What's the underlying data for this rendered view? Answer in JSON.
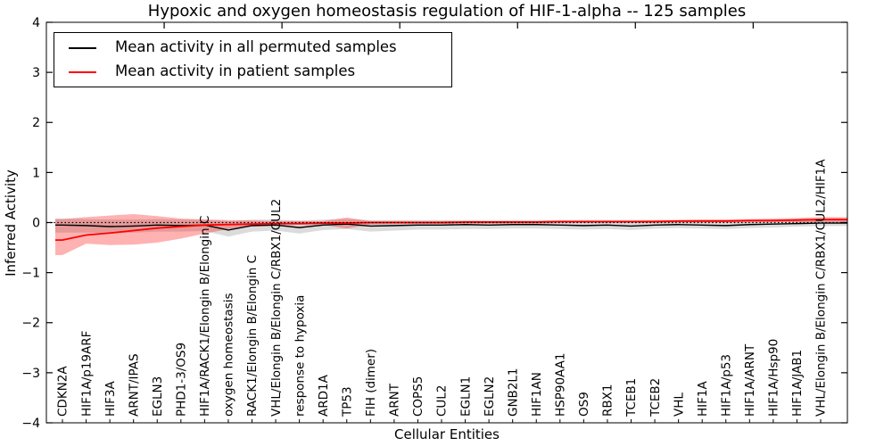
{
  "chart_data": {
    "type": "line",
    "title": "Hypoxic and oxygen homeostasis regulation of HIF-1-alpha -- 125 samples",
    "xlabel": "Cellular Entities",
    "ylabel": "Inferred Activity",
    "ylim": [
      -4,
      4
    ],
    "yticks": [
      -4,
      -3,
      -2,
      -1,
      0,
      1,
      2,
      3,
      4
    ],
    "ytick_labels": [
      "−4",
      "−3",
      "−2",
      "−1",
      "0",
      "1",
      "2",
      "3",
      "4"
    ],
    "top_axis_xticks": [
      5,
      10,
      15,
      20,
      25,
      30
    ],
    "grid": false,
    "legend_position": "upper left",
    "zero_line": {
      "y": 0,
      "style": "dotted",
      "color": "#000000"
    },
    "categories": [
      "CDKN2A",
      "HIF1A/p19ARF",
      "HIF3A",
      "ARNT/IPAS",
      "EGLN3",
      "PHD1-3/OS9",
      "HIF1A/RACK1/Elongin B/Elongin C",
      "oxygen homeostasis",
      "RACK1/Elongin B/Elongin C",
      "VHL/Elongin B/Elongin C/RBX1/CUL2",
      "response to hypoxia",
      "ARD1A",
      "TP53",
      "FIH (dimer)",
      "ARNT",
      "COPS5",
      "CUL2",
      "EGLN1",
      "EGLN2",
      "GNB2L1",
      "HIF1AN",
      "HSP90AA1",
      "OS9",
      "RBX1",
      "TCEB1",
      "TCEB2",
      "VHL",
      "HIF1A",
      "HIF1A/p53",
      "HIF1A/ARNT",
      "HIF1A/Hsp90",
      "HIF1A/JAB1",
      "VHL/Elongin B/Elongin C/RBX1/CUL2/HIF1A"
    ],
    "series": [
      {
        "name": "Mean activity in all permuted samples",
        "color": "#000000",
        "values": [
          -0.05,
          -0.06,
          -0.08,
          -0.07,
          -0.05,
          -0.06,
          -0.05,
          -0.15,
          -0.06,
          -0.05,
          -0.1,
          -0.05,
          -0.03,
          -0.07,
          -0.06,
          -0.05,
          -0.05,
          -0.04,
          -0.05,
          -0.04,
          -0.04,
          -0.05,
          -0.06,
          -0.05,
          -0.07,
          -0.05,
          -0.04,
          -0.05,
          -0.06,
          -0.04,
          -0.03,
          -0.02,
          -0.01
        ]
      },
      {
        "name": "Mean activity in patient samples",
        "color": "#ff0000",
        "values": [
          -0.35,
          -0.25,
          -0.21,
          -0.16,
          -0.11,
          -0.08,
          -0.05,
          -0.04,
          -0.03,
          -0.02,
          -0.02,
          -0.01,
          -0.01,
          0,
          0,
          0,
          0,
          0.01,
          0.01,
          0.01,
          0.01,
          0.02,
          0.02,
          0.02,
          0.02,
          0.02,
          0.03,
          0.03,
          0.03,
          0.04,
          0.04,
          0.05,
          0.06
        ]
      }
    ],
    "bands": [
      {
        "series": "Mean activity in all permuted samples",
        "color": "#000000",
        "opacity": 0.14,
        "low": [
          -0.2,
          -0.2,
          -0.22,
          -0.2,
          -0.18,
          -0.18,
          -0.17,
          -0.28,
          -0.18,
          -0.16,
          -0.22,
          -0.15,
          -0.13,
          -0.18,
          -0.16,
          -0.14,
          -0.14,
          -0.13,
          -0.13,
          -0.12,
          -0.12,
          -0.13,
          -0.14,
          -0.13,
          -0.15,
          -0.12,
          -0.11,
          -0.12,
          -0.13,
          -0.11,
          -0.1,
          -0.08,
          -0.07
        ],
        "high": [
          0.08,
          0.07,
          0.06,
          0.06,
          0.07,
          0.06,
          0.06,
          0.03,
          0.06,
          0.06,
          0.04,
          0.06,
          0.07,
          0.05,
          0.05,
          0.05,
          0.05,
          0.05,
          0.04,
          0.05,
          0.05,
          0.04,
          0.03,
          0.04,
          0.03,
          0.04,
          0.04,
          0.03,
          0.02,
          0.03,
          0.04,
          0.04,
          0.05
        ]
      },
      {
        "series": "Mean activity in patient samples",
        "color": "#ff0000",
        "opacity": 0.3,
        "low": [
          -0.65,
          -0.42,
          -0.45,
          -0.44,
          -0.4,
          -0.32,
          -0.22,
          -0.13,
          -0.08,
          -0.06,
          -0.05,
          -0.05,
          -0.12,
          -0.04,
          -0.03,
          -0.03,
          -0.03,
          -0.02,
          -0.02,
          -0.02,
          -0.02,
          -0.01,
          -0.01,
          -0.01,
          -0.01,
          -0.01,
          0,
          0,
          0,
          0,
          0.01,
          0.01,
          0.01
        ],
        "high": [
          0.07,
          0.11,
          0.14,
          0.17,
          0.13,
          0.08,
          0.06,
          0.05,
          0.04,
          0.03,
          0.03,
          0.03,
          0.1,
          0.03,
          0.03,
          0.03,
          0.03,
          0.03,
          0.03,
          0.03,
          0.03,
          0.04,
          0.04,
          0.04,
          0.04,
          0.05,
          0.05,
          0.06,
          0.06,
          0.07,
          0.08,
          0.09,
          0.11
        ]
      }
    ],
    "legend": [
      {
        "label": "Mean activity in all permuted samples",
        "color": "#000000"
      },
      {
        "label": "Mean activity in patient samples",
        "color": "#ff0000"
      }
    ]
  }
}
